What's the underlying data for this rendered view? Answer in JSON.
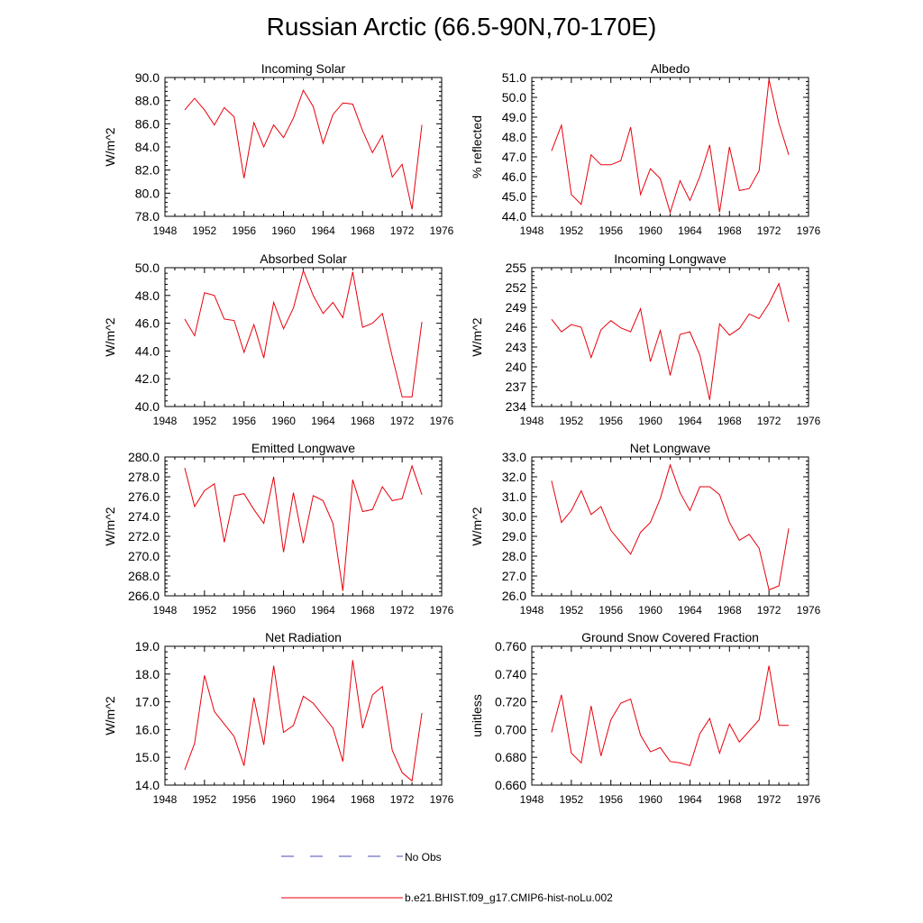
{
  "figure": {
    "title": "Russian Arctic (66.5-90N,70-170E)"
  },
  "legend": {
    "entries": [
      {
        "label": "No Obs",
        "color": "#4a4ab4",
        "style": "dashed"
      },
      {
        "label": "b.e21.BHIST.f09_g17.CMIP6-hist-noLu.002",
        "color": "#e8000b",
        "style": "solid"
      }
    ]
  },
  "chart_data": [
    {
      "type": "line",
      "title": "Incoming Solar",
      "ylabel": "W/m^2",
      "xlim": [
        1948,
        1976
      ],
      "ylim": [
        78,
        90
      ],
      "xticks": [
        1948,
        1952,
        1956,
        1960,
        1964,
        1968,
        1972,
        1976
      ],
      "yticks": [
        "78.0",
        "80.0",
        "82.0",
        "84.0",
        "86.0",
        "88.0",
        "90.0"
      ],
      "series": [
        {
          "color": "#e8000b",
          "x": [
            1950,
            1951,
            1952,
            1953,
            1954,
            1955,
            1956,
            1957,
            1958,
            1959,
            1960,
            1961,
            1962,
            1963,
            1964,
            1965,
            1966,
            1967,
            1968,
            1969,
            1970,
            1971,
            1972,
            1973,
            1974
          ],
          "y": [
            87.2,
            88.2,
            87.2,
            85.9,
            87.4,
            86.6,
            81.3,
            86.1,
            84.0,
            85.9,
            84.8,
            86.5,
            88.9,
            87.5,
            84.3,
            86.8,
            87.8,
            87.7,
            85.4,
            83.5,
            85.0,
            81.4,
            82.5,
            78.6,
            85.9
          ]
        }
      ]
    },
    {
      "type": "line",
      "title": "Albedo",
      "ylabel": "% reflected",
      "xlim": [
        1948,
        1976
      ],
      "ylim": [
        44,
        51
      ],
      "xticks": [
        1948,
        1952,
        1956,
        1960,
        1964,
        1968,
        1972,
        1976
      ],
      "yticks": [
        "44.0",
        "45.0",
        "46.0",
        "47.0",
        "48.0",
        "49.0",
        "50.0",
        "51.0"
      ],
      "series": [
        {
          "color": "#e8000b",
          "x": [
            1950,
            1951,
            1952,
            1953,
            1954,
            1955,
            1956,
            1957,
            1958,
            1959,
            1960,
            1961,
            1962,
            1963,
            1964,
            1965,
            1966,
            1967,
            1968,
            1969,
            1970,
            1971,
            1972,
            1973,
            1974
          ],
          "y": [
            47.3,
            48.6,
            45.1,
            44.6,
            47.1,
            46.6,
            46.6,
            46.8,
            48.5,
            45.1,
            46.4,
            45.9,
            44.2,
            45.8,
            44.8,
            46.0,
            47.6,
            44.2,
            47.5,
            45.3,
            45.4,
            46.3,
            50.9,
            48.7,
            47.1
          ]
        }
      ]
    },
    {
      "type": "line",
      "title": "Absorbed Solar",
      "ylabel": "W/m^2",
      "xlim": [
        1948,
        1976
      ],
      "ylim": [
        40,
        50
      ],
      "xticks": [
        1948,
        1952,
        1956,
        1960,
        1964,
        1968,
        1972,
        1976
      ],
      "yticks": [
        "40.0",
        "42.0",
        "44.0",
        "46.0",
        "48.0",
        "50.0"
      ],
      "series": [
        {
          "color": "#e8000b",
          "x": [
            1950,
            1951,
            1952,
            1953,
            1954,
            1955,
            1956,
            1957,
            1958,
            1959,
            1960,
            1961,
            1962,
            1963,
            1964,
            1965,
            1966,
            1967,
            1968,
            1969,
            1970,
            1971,
            1972,
            1973,
            1974
          ],
          "y": [
            46.3,
            45.1,
            48.2,
            48.0,
            46.3,
            46.2,
            43.9,
            45.9,
            43.5,
            47.5,
            45.6,
            47.1,
            49.8,
            48.0,
            46.7,
            47.5,
            46.4,
            49.7,
            45.7,
            46.0,
            46.7,
            43.6,
            40.7,
            40.7,
            46.1
          ]
        }
      ]
    },
    {
      "type": "line",
      "title": "Incoming Longwave",
      "ylabel": "W/m^2",
      "xlim": [
        1948,
        1976
      ],
      "ylim": [
        234,
        255
      ],
      "xticks": [
        1948,
        1952,
        1956,
        1960,
        1964,
        1968,
        1972,
        1976
      ],
      "yticks": [
        "234",
        "237",
        "240",
        "243",
        "246",
        "249",
        "252",
        "255"
      ],
      "series": [
        {
          "color": "#e8000b",
          "x": [
            1950,
            1951,
            1952,
            1953,
            1954,
            1955,
            1956,
            1957,
            1958,
            1959,
            1960,
            1961,
            1962,
            1963,
            1964,
            1965,
            1966,
            1967,
            1968,
            1969,
            1970,
            1971,
            1972,
            1973,
            1974
          ],
          "y": [
            247.2,
            245.3,
            246.4,
            246.0,
            241.4,
            245.6,
            247.0,
            245.9,
            245.3,
            248.8,
            240.8,
            245.5,
            238.7,
            244.9,
            245.3,
            241.8,
            235.0,
            246.5,
            244.8,
            245.8,
            248.0,
            247.3,
            249.6,
            252.6,
            246.8
          ]
        }
      ]
    },
    {
      "type": "line",
      "title": "Emitted Longwave",
      "ylabel": "W/m^2",
      "xlim": [
        1948,
        1976
      ],
      "ylim": [
        266,
        280
      ],
      "xticks": [
        1948,
        1952,
        1956,
        1960,
        1964,
        1968,
        1972,
        1976
      ],
      "yticks": [
        "266.0",
        "268.0",
        "270.0",
        "272.0",
        "274.0",
        "276.0",
        "278.0",
        "280.0"
      ],
      "series": [
        {
          "color": "#e8000b",
          "x": [
            1950,
            1951,
            1952,
            1953,
            1954,
            1955,
            1956,
            1957,
            1958,
            1959,
            1960,
            1961,
            1962,
            1963,
            1964,
            1965,
            1966,
            1967,
            1968,
            1969,
            1970,
            1971,
            1972,
            1973,
            1974
          ],
          "y": [
            278.9,
            275.0,
            276.6,
            277.3,
            271.4,
            276.1,
            276.3,
            274.7,
            273.3,
            278.0,
            270.4,
            276.4,
            271.3,
            276.1,
            275.6,
            273.3,
            266.5,
            277.7,
            274.5,
            274.7,
            277.0,
            275.6,
            275.8,
            279.1,
            276.2
          ]
        }
      ]
    },
    {
      "type": "line",
      "title": "Net Longwave",
      "ylabel": "W/m^2",
      "xlim": [
        1948,
        1976
      ],
      "ylim": [
        26,
        33
      ],
      "xticks": [
        1948,
        1952,
        1956,
        1960,
        1964,
        1968,
        1972,
        1976
      ],
      "yticks": [
        "26.0",
        "27.0",
        "28.0",
        "29.0",
        "30.0",
        "31.0",
        "32.0",
        "33.0"
      ],
      "series": [
        {
          "color": "#e8000b",
          "x": [
            1950,
            1951,
            1952,
            1953,
            1954,
            1955,
            1956,
            1957,
            1958,
            1959,
            1960,
            1961,
            1962,
            1963,
            1964,
            1965,
            1966,
            1967,
            1968,
            1969,
            1970,
            1971,
            1972,
            1973,
            1974
          ],
          "y": [
            31.8,
            29.7,
            30.3,
            31.3,
            30.1,
            30.5,
            29.3,
            28.7,
            28.1,
            29.2,
            29.7,
            30.9,
            32.6,
            31.2,
            30.3,
            31.5,
            31.5,
            31.1,
            29.7,
            28.8,
            29.1,
            28.4,
            26.3,
            26.5,
            29.4
          ]
        }
      ]
    },
    {
      "type": "line",
      "title": "Net Radiation",
      "ylabel": "W/m^2",
      "xlim": [
        1948,
        1976
      ],
      "ylim": [
        14,
        19
      ],
      "xticks": [
        1948,
        1952,
        1956,
        1960,
        1964,
        1968,
        1972,
        1976
      ],
      "yticks": [
        "14.0",
        "15.0",
        "16.0",
        "17.0",
        "18.0",
        "19.0"
      ],
      "series": [
        {
          "color": "#e8000b",
          "x": [
            1950,
            1951,
            1952,
            1953,
            1954,
            1955,
            1956,
            1957,
            1958,
            1959,
            1960,
            1961,
            1962,
            1963,
            1964,
            1965,
            1966,
            1967,
            1968,
            1969,
            1970,
            1971,
            1972,
            1973,
            1974
          ],
          "y": [
            14.55,
            15.5,
            17.95,
            16.65,
            16.2,
            15.75,
            14.7,
            17.15,
            15.45,
            18.3,
            15.9,
            16.15,
            17.2,
            16.95,
            16.5,
            16.05,
            14.85,
            18.5,
            16.05,
            17.25,
            17.55,
            15.25,
            14.45,
            14.15,
            16.6
          ]
        }
      ]
    },
    {
      "type": "line",
      "title": "Ground Snow Covered Fraction",
      "ylabel": "unitless",
      "xlim": [
        1948,
        1976
      ],
      "ylim": [
        0.66,
        0.76
      ],
      "xticks": [
        1948,
        1952,
        1956,
        1960,
        1964,
        1968,
        1972,
        1976
      ],
      "yticks": [
        "0.660",
        "0.680",
        "0.700",
        "0.720",
        "0.740",
        "0.760"
      ],
      "series": [
        {
          "color": "#e8000b",
          "x": [
            1950,
            1951,
            1952,
            1953,
            1954,
            1955,
            1956,
            1957,
            1958,
            1959,
            1960,
            1961,
            1962,
            1963,
            1964,
            1965,
            1966,
            1967,
            1968,
            1969,
            1970,
            1971,
            1972,
            1973,
            1974
          ],
          "y": [
            0.698,
            0.725,
            0.683,
            0.676,
            0.717,
            0.681,
            0.707,
            0.719,
            0.722,
            0.696,
            0.684,
            0.687,
            0.677,
            0.676,
            0.674,
            0.697,
            0.708,
            0.683,
            0.704,
            0.691,
            0.699,
            0.707,
            0.746,
            0.703,
            0.703
          ]
        }
      ]
    }
  ]
}
